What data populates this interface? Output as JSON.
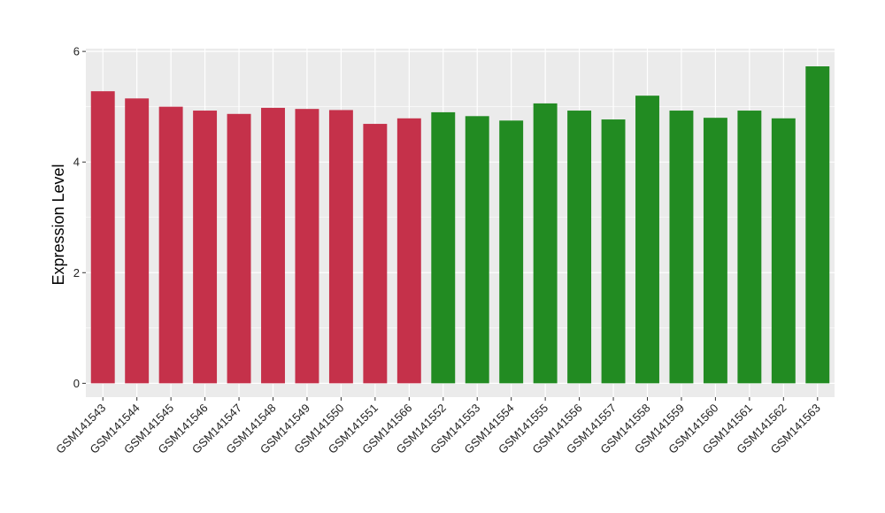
{
  "chart_data": {
    "type": "bar",
    "title": "",
    "xlabel": "",
    "ylabel": "Expression Level",
    "ylim": [
      -0.25,
      6.05
    ],
    "yticks": [
      0,
      2,
      4,
      6
    ],
    "grid": true,
    "background_color": "#EBEBEB",
    "grid_color": "#FFFFFF",
    "categories": [
      "GSM141543",
      "GSM141544",
      "GSM141545",
      "GSM141546",
      "GSM141547",
      "GSM141548",
      "GSM141549",
      "GSM141550",
      "GSM141551",
      "GSM141566",
      "GSM141552",
      "GSM141553",
      "GSM141554",
      "GSM141555",
      "GSM141556",
      "GSM141557",
      "GSM141558",
      "GSM141559",
      "GSM141560",
      "GSM141561",
      "GSM141562",
      "GSM141563"
    ],
    "values": [
      5.28,
      5.15,
      5.0,
      4.93,
      4.87,
      4.98,
      4.96,
      4.94,
      4.69,
      4.79,
      4.9,
      4.83,
      4.75,
      5.06,
      4.93,
      4.77,
      5.2,
      4.93,
      4.8,
      4.93,
      4.79,
      5.73
    ],
    "bar_colors": [
      "#C5314A",
      "#C5314A",
      "#C5314A",
      "#C5314A",
      "#C5314A",
      "#C5314A",
      "#C5314A",
      "#C5314A",
      "#C5314A",
      "#C5314A",
      "#228B22",
      "#228B22",
      "#228B22",
      "#228B22",
      "#228B22",
      "#228B22",
      "#228B22",
      "#228B22",
      "#228B22",
      "#228B22",
      "#228B22",
      "#228B22"
    ]
  }
}
